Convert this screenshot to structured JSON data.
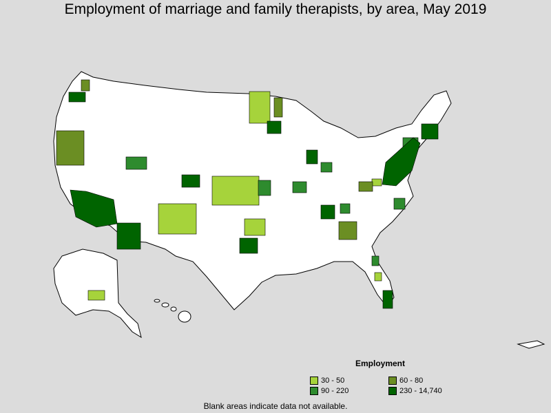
{
  "title": "Employment of marriage and family therapists, by area, May 2019",
  "legend": {
    "title": "Employment",
    "items": [
      {
        "label": "30 - 50",
        "color": "#a6d33b"
      },
      {
        "label": "60 - 80",
        "color": "#6b8e23"
      },
      {
        "label": "90 - 220",
        "color": "#2e8b2e"
      },
      {
        "label": "230 - 14,740",
        "color": "#006400"
      }
    ]
  },
  "note": "Blank areas indicate data not available.",
  "colors": {
    "background": "#dcdcdc",
    "land": "#ffffff",
    "border": "#000000"
  }
}
